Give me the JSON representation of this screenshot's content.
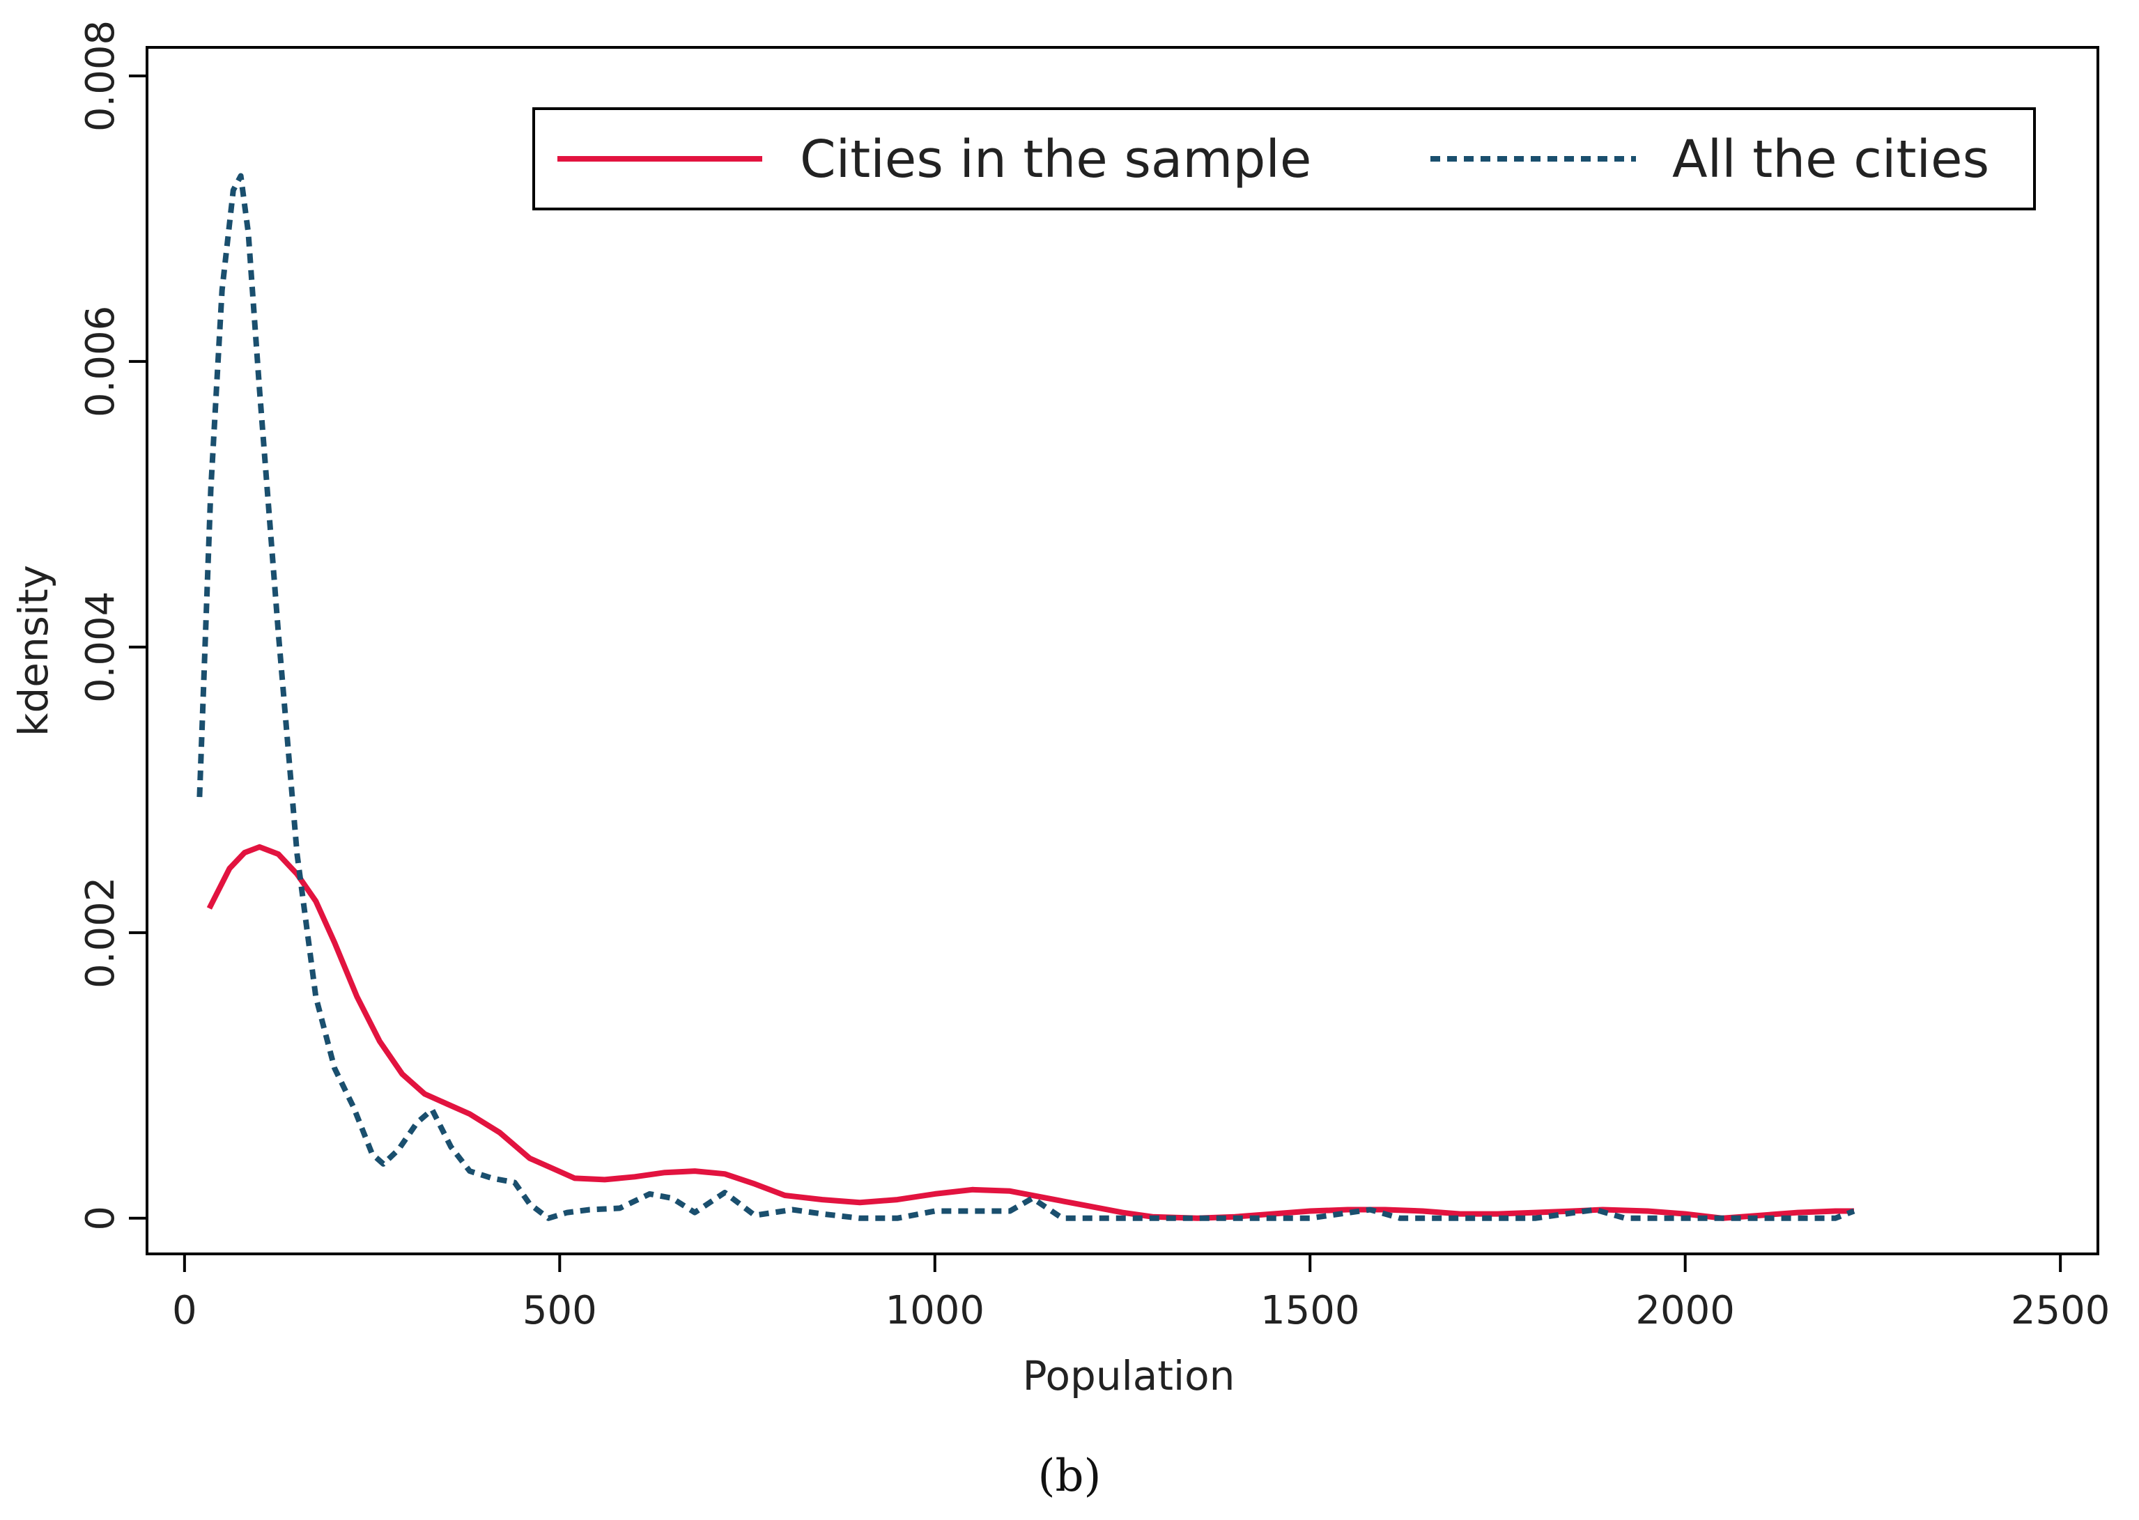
{
  "chart_data": {
    "type": "line",
    "xlabel": "Population",
    "ylabel": "kdensity",
    "xlim": [
      -50,
      2550
    ],
    "ylim": [
      -0.00025,
      0.0082
    ],
    "x_ticks": [
      0,
      500,
      1000,
      1500,
      2000,
      2500
    ],
    "x_tick_labels": [
      "0",
      "500",
      "1000",
      "1500",
      "2000",
      "2500"
    ],
    "y_ticks": [
      0,
      0.002,
      0.004,
      0.006,
      0.008
    ],
    "y_tick_labels": [
      "0",
      "0.002",
      "0.004",
      "0.006",
      "0.008"
    ],
    "grid": false,
    "legend_position": "top",
    "series": [
      {
        "name": "Cities in the sample",
        "color": "#e2133f",
        "style": "solid",
        "points": [
          [
            33,
            0.00217
          ],
          [
            60,
            0.00245
          ],
          [
            80,
            0.00256
          ],
          [
            100,
            0.0026
          ],
          [
            125,
            0.00255
          ],
          [
            150,
            0.00241
          ],
          [
            175,
            0.00222
          ],
          [
            200,
            0.00193
          ],
          [
            230,
            0.00155
          ],
          [
            260,
            0.00124
          ],
          [
            290,
            0.00101
          ],
          [
            320,
            0.00087
          ],
          [
            350,
            0.0008
          ],
          [
            380,
            0.00073
          ],
          [
            420,
            0.0006
          ],
          [
            460,
            0.00042
          ],
          [
            490,
            0.00035
          ],
          [
            520,
            0.00028
          ],
          [
            560,
            0.00027
          ],
          [
            600,
            0.00029
          ],
          [
            640,
            0.00032
          ],
          [
            680,
            0.00033
          ],
          [
            720,
            0.00031
          ],
          [
            760,
            0.00024
          ],
          [
            800,
            0.00016
          ],
          [
            850,
            0.00013
          ],
          [
            900,
            0.00011
          ],
          [
            950,
            0.00013
          ],
          [
            1000,
            0.00017
          ],
          [
            1050,
            0.0002
          ],
          [
            1100,
            0.00019
          ],
          [
            1150,
            0.00014
          ],
          [
            1200,
            9e-05
          ],
          [
            1250,
            4e-05
          ],
          [
            1290,
            1e-05
          ],
          [
            1350,
            0.0
          ],
          [
            1400,
            1e-05
          ],
          [
            1450,
            3e-05
          ],
          [
            1500,
            5e-05
          ],
          [
            1550,
            6e-05
          ],
          [
            1600,
            6e-05
          ],
          [
            1650,
            5e-05
          ],
          [
            1700,
            3e-05
          ],
          [
            1750,
            3e-05
          ],
          [
            1800,
            4e-05
          ],
          [
            1850,
            5e-05
          ],
          [
            1890,
            6e-05
          ],
          [
            1950,
            5e-05
          ],
          [
            2000,
            3e-05
          ],
          [
            2050,
            0.0
          ],
          [
            2100,
            2e-05
          ],
          [
            2150,
            4e-05
          ],
          [
            2200,
            5e-05
          ],
          [
            2225,
            5e-05
          ]
        ]
      },
      {
        "name": "All the cities",
        "color": "#1a4f6e",
        "style": "dotted",
        "points": [
          [
            20,
            0.00295
          ],
          [
            35,
            0.0051
          ],
          [
            50,
            0.0065
          ],
          [
            65,
            0.0072
          ],
          [
            75,
            0.0073
          ],
          [
            85,
            0.0069
          ],
          [
            100,
            0.0058
          ],
          [
            125,
            0.0041
          ],
          [
            150,
            0.00255
          ],
          [
            175,
            0.00155
          ],
          [
            200,
            0.00105
          ],
          [
            225,
            0.00078
          ],
          [
            250,
            0.00045
          ],
          [
            265,
            0.00038
          ],
          [
            285,
            0.00048
          ],
          [
            310,
            0.00067
          ],
          [
            330,
            0.00076
          ],
          [
            355,
            0.0005
          ],
          [
            380,
            0.00033
          ],
          [
            410,
            0.00028
          ],
          [
            440,
            0.00025
          ],
          [
            460,
            0.0001
          ],
          [
            485,
            0.0
          ],
          [
            510,
            4e-05
          ],
          [
            540,
            6e-05
          ],
          [
            580,
            7e-05
          ],
          [
            620,
            0.00017
          ],
          [
            650,
            0.00014
          ],
          [
            680,
            4e-05
          ],
          [
            720,
            0.00018
          ],
          [
            760,
            2e-05
          ],
          [
            810,
            6e-05
          ],
          [
            850,
            3e-05
          ],
          [
            900,
            0.0
          ],
          [
            950,
            0.0
          ],
          [
            1000,
            5e-05
          ],
          [
            1060,
            5e-05
          ],
          [
            1100,
            5e-05
          ],
          [
            1130,
            0.00014
          ],
          [
            1170,
            0.0
          ],
          [
            1220,
            0.0
          ],
          [
            1300,
            0.0
          ],
          [
            1400,
            0.0
          ],
          [
            1500,
            0.0
          ],
          [
            1580,
            6e-05
          ],
          [
            1620,
            0.0
          ],
          [
            1700,
            0.0
          ],
          [
            1800,
            0.0
          ],
          [
            1880,
            6e-05
          ],
          [
            1920,
            0.0
          ],
          [
            2000,
            0.0
          ],
          [
            2100,
            0.0
          ],
          [
            2200,
            0.0
          ],
          [
            2225,
            5e-05
          ]
        ]
      }
    ]
  },
  "caption": "(b)"
}
